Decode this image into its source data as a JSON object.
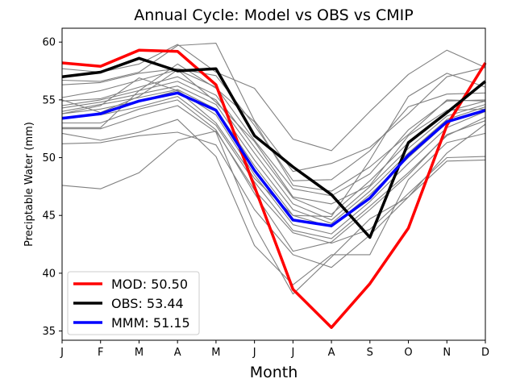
{
  "chart_data": {
    "type": "line",
    "title": "Annual Cycle: Model vs OBS vs CMIP",
    "xlabel": "Month",
    "ylabel": "Preciptable Water (mm)",
    "categories": [
      "J",
      "F",
      "M",
      "A",
      "M",
      "J",
      "J",
      "A",
      "S",
      "O",
      "N",
      "D"
    ],
    "ylim": [
      34.2,
      61.2
    ],
    "yticks": [
      35,
      40,
      45,
      50,
      55,
      60
    ],
    "grid": false,
    "legend_position": "lower-left",
    "series": [
      {
        "name": "MOD",
        "label": "MOD: 50.50",
        "color": "#ff0000",
        "values": [
          58.2,
          57.9,
          59.3,
          59.2,
          56.3,
          47.5,
          38.6,
          35.3,
          39.1,
          43.9,
          52.8,
          58.2
        ]
      },
      {
        "name": "OBS",
        "label": "OBS: 53.44",
        "color": "#000000",
        "values": [
          57.0,
          57.4,
          58.6,
          57.5,
          57.7,
          51.9,
          49.2,
          46.8,
          43.1,
          51.3,
          53.9,
          56.6
        ]
      },
      {
        "name": "MMM",
        "label": "MMM: 51.15",
        "color": "#0000ff",
        "values": [
          53.4,
          53.8,
          54.9,
          55.6,
          54.1,
          48.9,
          44.6,
          44.1,
          46.5,
          50.2,
          53.1,
          54.1
        ]
      }
    ],
    "cmip_color": "#808080",
    "cmip_models": [
      [
        47.6,
        47.3,
        48.7,
        51.5,
        52.3,
        47.2,
        43.5,
        42.6,
        43.8,
        46.9,
        50.0,
        50.1
      ],
      [
        51.2,
        51.3,
        51.9,
        52.2,
        51.1,
        45.5,
        41.6,
        40.5,
        43.3,
        46.6,
        49.7,
        49.8
      ],
      [
        52.1,
        51.5,
        52.2,
        53.3,
        50.1,
        42.4,
        39.0,
        41.6,
        41.6,
        48.1,
        51.3,
        52.1
      ],
      [
        52.5,
        52.5,
        53.6,
        54.5,
        52.2,
        44.1,
        38.2,
        41.4,
        44.7,
        46.6,
        50.4,
        52.9
      ],
      [
        53.0,
        53.0,
        54.2,
        55.0,
        52.4,
        46.9,
        41.9,
        42.7,
        45.5,
        48.5,
        52.0,
        53.2
      ],
      [
        53.5,
        53.7,
        54.4,
        55.3,
        52.8,
        47.9,
        43.7,
        43.0,
        45.8,
        48.7,
        51.9,
        53.5
      ],
      [
        53.8,
        54.2,
        54.9,
        55.8,
        53.7,
        48.5,
        44.2,
        43.4,
        46.2,
        49.5,
        52.6,
        54.0
      ],
      [
        54.0,
        54.6,
        55.2,
        55.9,
        54.2,
        49.3,
        45.0,
        44.0,
        46.8,
        50.0,
        53.0,
        54.2
      ],
      [
        54.3,
        54.8,
        55.5,
        56.2,
        54.6,
        49.8,
        45.5,
        44.3,
        47.1,
        50.4,
        53.3,
        54.4
      ],
      [
        54.5,
        55.0,
        55.8,
        56.6,
        55.0,
        50.4,
        46.0,
        44.6,
        47.5,
        50.8,
        53.6,
        54.6
      ],
      [
        54.9,
        55.1,
        56.1,
        57.0,
        55.4,
        50.9,
        46.5,
        45.1,
        48.0,
        51.3,
        54.0,
        54.9
      ],
      [
        55.0,
        53.9,
        55.3,
        57.6,
        54.8,
        51.4,
        46.6,
        46.0,
        47.6,
        51.9,
        54.1,
        54.2
      ],
      [
        55.2,
        55.8,
        56.7,
        57.6,
        56.1,
        51.5,
        47.3,
        46.7,
        48.6,
        52.4,
        54.9,
        55.0
      ],
      [
        52.6,
        52.6,
        55.8,
        58.1,
        56.0,
        53.1,
        47.6,
        47.1,
        49.2,
        52.0,
        55.0,
        54.9
      ],
      [
        56.3,
        56.5,
        57.3,
        57.7,
        57.1,
        52.8,
        48.0,
        48.1,
        50.6,
        54.4,
        55.5,
        55.6
      ],
      [
        56.7,
        56.6,
        57.4,
        59.7,
        59.9,
        53.2,
        48.8,
        49.5,
        50.9,
        53.8,
        57.0,
        57.8
      ],
      [
        57.7,
        57.4,
        58.1,
        59.8,
        57.4,
        56.0,
        51.6,
        50.6,
        54.0,
        57.2,
        59.3,
        57.8
      ],
      [
        53.8,
        54.5,
        56.9,
        55.8,
        53.0,
        48.2,
        45.0,
        44.9,
        49.8,
        55.3,
        57.3,
        56.1
      ]
    ]
  }
}
